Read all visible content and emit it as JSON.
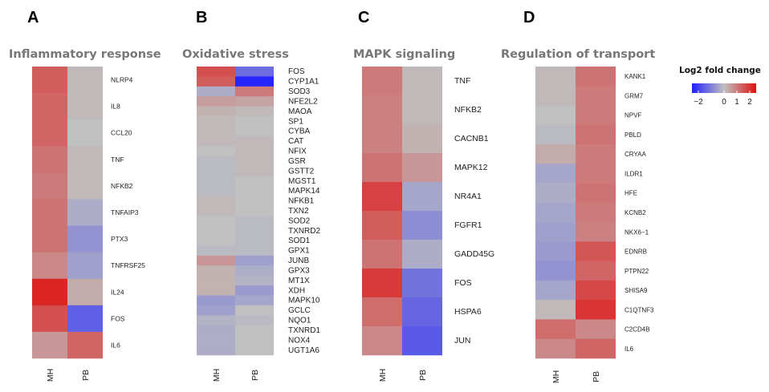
{
  "legend": {
    "title": "Log2 fold change",
    "ticks": [
      "−2",
      "0",
      "1",
      "2"
    ],
    "tick_values": [
      -2,
      0,
      1,
      2
    ],
    "range": [
      -2.5,
      2.5
    ],
    "colors": {
      "low": "#2020ff",
      "mid": "#c0c0c0",
      "high": "#e01010"
    }
  },
  "chart_data": [
    {
      "type": "heatmap",
      "panel": "A",
      "title": "Inflammatory response",
      "columns": [
        "MH",
        "PB"
      ],
      "rows": [
        "NLRP4",
        "IL8",
        "CCL20",
        "TNF",
        "NFKB2",
        "TNFAIP3",
        "PTX3",
        "TNFRSF25",
        "IL24",
        "FOS",
        "IL6"
      ],
      "values": [
        [
          1.4,
          0.1
        ],
        [
          1.3,
          0.1
        ],
        [
          1.3,
          0.0
        ],
        [
          1.1,
          0.1
        ],
        [
          1.0,
          0.1
        ],
        [
          1.1,
          -0.3
        ],
        [
          1.1,
          -0.7
        ],
        [
          0.8,
          -0.5
        ],
        [
          2.2,
          0.3
        ],
        [
          1.6,
          -1.5
        ],
        [
          0.6,
          1.3
        ]
      ]
    },
    {
      "type": "heatmap",
      "panel": "B",
      "title": "Oxidative stress",
      "columns": [
        "MH",
        "PB"
      ],
      "rows": [
        "FOS",
        "CYP1A1",
        "SOD3",
        "NFE2L2",
        "MAOA",
        "SP1",
        "CYBA",
        "CAT",
        "NFIX",
        "GSR",
        "GSTT2",
        "MGST1",
        "MAPK14",
        "NFKB1",
        "TXN2",
        "SOD2",
        "TXNRD2",
        "SOD1",
        "GPX1",
        "JUNB",
        "GPX3",
        "MT1X",
        "XDH",
        "MAPK10",
        "GCLC",
        "NQO1",
        "TXNRD1",
        "NOX4",
        "UGT1A6"
      ],
      "values": [
        [
          1.6,
          -1.3
        ],
        [
          1.4,
          -2.4
        ],
        [
          -0.3,
          1.0
        ],
        [
          0.5,
          0.4
        ],
        [
          0.2,
          0.1
        ],
        [
          0.1,
          0.0
        ],
        [
          0.1,
          0.0
        ],
        [
          0.1,
          0.1
        ],
        [
          0.0,
          0.1
        ],
        [
          -0.1,
          0.1
        ],
        [
          -0.1,
          0.1
        ],
        [
          -0.1,
          0.0
        ],
        [
          -0.1,
          0.0
        ],
        [
          0.1,
          0.0
        ],
        [
          0.1,
          0.0
        ],
        [
          0.0,
          -0.1
        ],
        [
          0.0,
          -0.1
        ],
        [
          0.0,
          -0.1
        ],
        [
          -0.1,
          -0.1
        ],
        [
          0.6,
          -0.5
        ],
        [
          0.2,
          -0.3
        ],
        [
          0.2,
          -0.2
        ],
        [
          0.2,
          -0.6
        ],
        [
          -0.6,
          -0.4
        ],
        [
          -0.5,
          0.0
        ],
        [
          -0.2,
          -0.1
        ],
        [
          -0.3,
          0.0
        ],
        [
          -0.3,
          0.0
        ],
        [
          -0.3,
          0.0
        ]
      ]
    },
    {
      "type": "heatmap",
      "panel": "C",
      "title": "MAPK signaling",
      "columns": [
        "MH",
        "PB"
      ],
      "rows": [
        "TNF",
        "NFKB2",
        "CACNB1",
        "MAPK12",
        "NR4A1",
        "FGFR1",
        "GADD45G",
        "FOS",
        "HSPA6",
        "JUN"
      ],
      "values": [
        [
          1.0,
          0.1
        ],
        [
          0.9,
          0.1
        ],
        [
          0.9,
          0.2
        ],
        [
          1.1,
          0.6
        ],
        [
          1.8,
          -0.4
        ],
        [
          1.4,
          -0.8
        ],
        [
          1.1,
          -0.3
        ],
        [
          1.9,
          -1.2
        ],
        [
          1.2,
          -1.4
        ],
        [
          0.8,
          -1.6
        ]
      ]
    },
    {
      "type": "heatmap",
      "panel": "D",
      "title": "Regulation of transport",
      "columns": [
        "MH",
        "PB"
      ],
      "rows": [
        "KANK1",
        "GRM7",
        "NPVF",
        "PBLD",
        "CRYAA",
        "ILDR1",
        "HFE",
        "KCNB2",
        "NKX6−1",
        "EDNRB",
        "PTPN22",
        "SHISA9",
        "C1QTNF3",
        "C2CD4B",
        "IL6"
      ],
      "values": [
        [
          0.1,
          1.1
        ],
        [
          0.1,
          1.0
        ],
        [
          0.0,
          1.0
        ],
        [
          -0.1,
          1.1
        ],
        [
          0.3,
          1.0
        ],
        [
          -0.4,
          1.0
        ],
        [
          -0.3,
          1.1
        ],
        [
          -0.4,
          1.0
        ],
        [
          -0.5,
          0.9
        ],
        [
          -0.6,
          1.5
        ],
        [
          -0.7,
          1.3
        ],
        [
          -0.4,
          1.7
        ],
        [
          0.1,
          2.0
        ],
        [
          1.2,
          0.8
        ],
        [
          0.8,
          1.3
        ]
      ]
    }
  ]
}
